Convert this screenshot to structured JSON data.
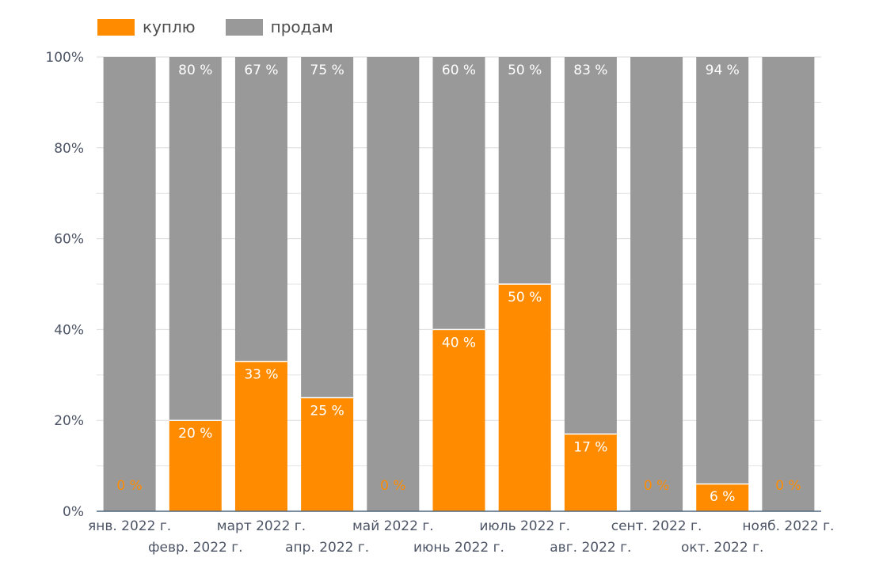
{
  "chart_data": {
    "type": "bar",
    "stacked": true,
    "normalized": true,
    "title": "",
    "xlabel": "",
    "ylabel": "",
    "ylim": [
      0,
      100
    ],
    "y_ticks": [
      "0%",
      "20%",
      "40%",
      "60%",
      "80%",
      "100%"
    ],
    "categories": [
      "янв. 2022 г.",
      "февр. 2022 г.",
      "март 2022 г.",
      "апр. 2022 г.",
      "май 2022 г.",
      "июнь 2022 г.",
      "июль 2022 г.",
      "авг. 2022 г.",
      "сент. 2022 г.",
      "окт. 2022 г.",
      "нояб. 2022 г."
    ],
    "series": [
      {
        "name": "куплю",
        "color": "#ff8c00",
        "values": [
          0,
          20,
          33,
          25,
          0,
          40,
          50,
          17,
          0,
          6,
          0
        ],
        "labels": [
          "0 %",
          "20 %",
          "33 %",
          "25 %",
          "0 %",
          "40 %",
          "50 %",
          "17 %",
          "0 %",
          "6 %",
          "0 %"
        ]
      },
      {
        "name": "продам",
        "color": "#999999",
        "values": [
          100,
          80,
          67,
          75,
          100,
          60,
          50,
          83,
          100,
          94,
          100
        ],
        "labels": [
          "",
          "80 %",
          "67 %",
          "75 %",
          "",
          "60 %",
          "50 %",
          "83 %",
          "",
          "94 %",
          ""
        ]
      }
    ],
    "grid": true,
    "legend_position": "top-left"
  }
}
